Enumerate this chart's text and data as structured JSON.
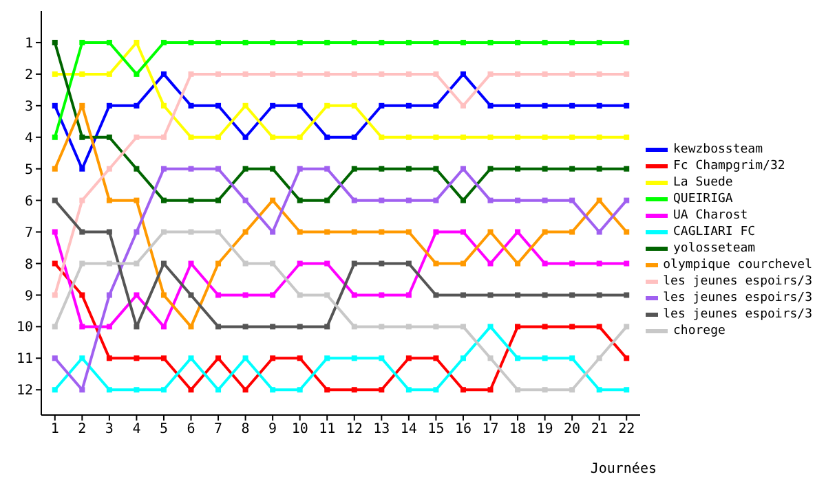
{
  "chart_data": {
    "type": "line",
    "xlabel": "Journées",
    "x": [
      1,
      2,
      3,
      4,
      5,
      6,
      7,
      8,
      9,
      10,
      11,
      12,
      13,
      14,
      15,
      16,
      17,
      18,
      19,
      20,
      21,
      22
    ],
    "xlim": [
      0.5,
      22.5
    ],
    "xticks": [
      1,
      2,
      3,
      4,
      5,
      6,
      7,
      8,
      9,
      10,
      11,
      12,
      13,
      14,
      15,
      16,
      17,
      18,
      19,
      20,
      21,
      22
    ],
    "ylim": [
      12.8,
      0
    ],
    "yticks": [
      1,
      2,
      3,
      4,
      5,
      6,
      7,
      8,
      9,
      10,
      11,
      12
    ],
    "legend": "right",
    "marker": "square",
    "line_style": "solid",
    "series": [
      {
        "name": "kewzbossteam",
        "color": "#0000ff",
        "values": [
          3,
          5,
          3,
          3,
          2,
          3,
          3,
          4,
          3,
          3,
          4,
          4,
          3,
          3,
          3,
          2,
          3,
          3,
          3,
          3,
          3,
          3
        ]
      },
      {
        "name": "Fc Champgrim/32",
        "color": "#ff0000",
        "values": [
          8,
          9,
          11,
          11,
          11,
          12,
          11,
          12,
          11,
          11,
          12,
          12,
          12,
          11,
          11,
          12,
          12,
          10,
          10,
          10,
          10,
          11
        ]
      },
      {
        "name": "La Suede",
        "color": "#ffff00",
        "values": [
          2,
          2,
          2,
          1,
          3,
          4,
          4,
          3,
          4,
          4,
          3,
          3,
          4,
          4,
          4,
          4,
          4,
          4,
          4,
          4,
          4,
          4
        ]
      },
      {
        "name": "QUEIRIGA",
        "color": "#00ff00",
        "values": [
          4,
          1,
          1,
          2,
          1,
          1,
          1,
          1,
          1,
          1,
          1,
          1,
          1,
          1,
          1,
          1,
          1,
          1,
          1,
          1,
          1,
          1
        ]
      },
      {
        "name": "UA Charost",
        "color": "#ff00ff",
        "values": [
          7,
          10,
          10,
          9,
          10,
          8,
          9,
          9,
          9,
          8,
          8,
          9,
          9,
          9,
          7,
          7,
          8,
          7,
          8,
          8,
          8,
          8
        ]
      },
      {
        "name": "CAGLIARI FC",
        "color": "#00ffff",
        "values": [
          12,
          11,
          12,
          12,
          12,
          11,
          12,
          11,
          12,
          12,
          11,
          11,
          11,
          12,
          12,
          11,
          10,
          11,
          11,
          11,
          12,
          12
        ]
      },
      {
        "name": "yolosseteam",
        "color": "#006400",
        "values": [
          1,
          4,
          4,
          5,
          6,
          6,
          6,
          5,
          5,
          6,
          6,
          5,
          5,
          5,
          5,
          6,
          5,
          5,
          5,
          5,
          5,
          5
        ]
      },
      {
        "name": "olympique courchevel",
        "color": "#ff9900",
        "values": [
          5,
          3,
          6,
          6,
          9,
          10,
          8,
          7,
          6,
          7,
          7,
          7,
          7,
          7,
          8,
          8,
          7,
          8,
          7,
          7,
          6,
          7
        ]
      },
      {
        "name": "les jeunes espoirs/3",
        "color": "#ffc0c0",
        "values": [
          9,
          6,
          5,
          4,
          4,
          2,
          2,
          2,
          2,
          2,
          2,
          2,
          2,
          2,
          2,
          3,
          2,
          2,
          2,
          2,
          2,
          2
        ]
      },
      {
        "name": "les jeunes espoirs/3",
        "color": "#a060f0",
        "values": [
          11,
          12,
          9,
          7,
          5,
          5,
          5,
          6,
          7,
          5,
          5,
          6,
          6,
          6,
          6,
          5,
          6,
          6,
          6,
          6,
          7,
          6
        ]
      },
      {
        "name": "les jeunes espoirs/3",
        "color": "#555555",
        "values": [
          6,
          7,
          7,
          10,
          8,
          9,
          10,
          10,
          10,
          10,
          10,
          8,
          8,
          8,
          9,
          9,
          9,
          9,
          9,
          9,
          9,
          9
        ]
      },
      {
        "name": "chorege",
        "color": "#c8c8c8",
        "values": [
          10,
          8,
          8,
          8,
          7,
          7,
          7,
          8,
          8,
          9,
          9,
          10,
          10,
          10,
          10,
          10,
          11,
          12,
          12,
          12,
          11,
          10
        ]
      }
    ]
  }
}
